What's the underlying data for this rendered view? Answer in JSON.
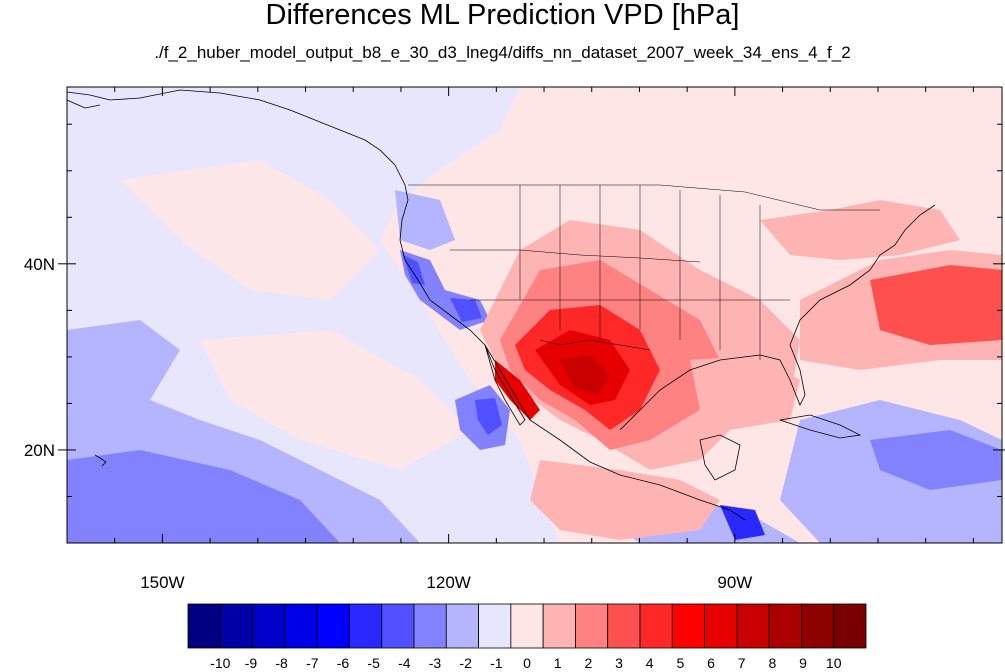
{
  "title": "Differences ML Prediction VPD [hPa]",
  "subtitle": "./f_2_huber_model_output_b8_e_30_d3_lneg4/diffs_nn_dataset_2007_week_34_ens_4_f_2",
  "map": {
    "lon_range": [
      -160,
      -62
    ],
    "lat_range": [
      10,
      59
    ],
    "lon_ticks": [
      {
        "value": -150,
        "label": "150W"
      },
      {
        "value": -120,
        "label": "120W"
      },
      {
        "value": -90,
        "label": "90W"
      }
    ],
    "lat_ticks": [
      {
        "value": 20,
        "label": "20N"
      },
      {
        "value": 40,
        "label": "40N"
      }
    ]
  },
  "colorbar": {
    "labels": [
      "-10",
      "-9",
      "-8",
      "-7",
      "-6",
      "-5",
      "-4",
      "-3",
      "-2",
      "-1",
      "0",
      "1",
      "2",
      "3",
      "4",
      "5",
      "6",
      "7",
      "8",
      "9",
      "10"
    ],
    "colors": [
      "#000080",
      "#0000a6",
      "#0000c8",
      "#0000e6",
      "#0000ff",
      "#2828ff",
      "#5050ff",
      "#8282ff",
      "#b4b4ff",
      "#e6e6ff",
      "#ffe6e6",
      "#ffb4b4",
      "#ff8282",
      "#ff5050",
      "#ff2828",
      "#ff0000",
      "#e60000",
      "#c80000",
      "#aa0000",
      "#8c0000",
      "#780000"
    ]
  }
}
